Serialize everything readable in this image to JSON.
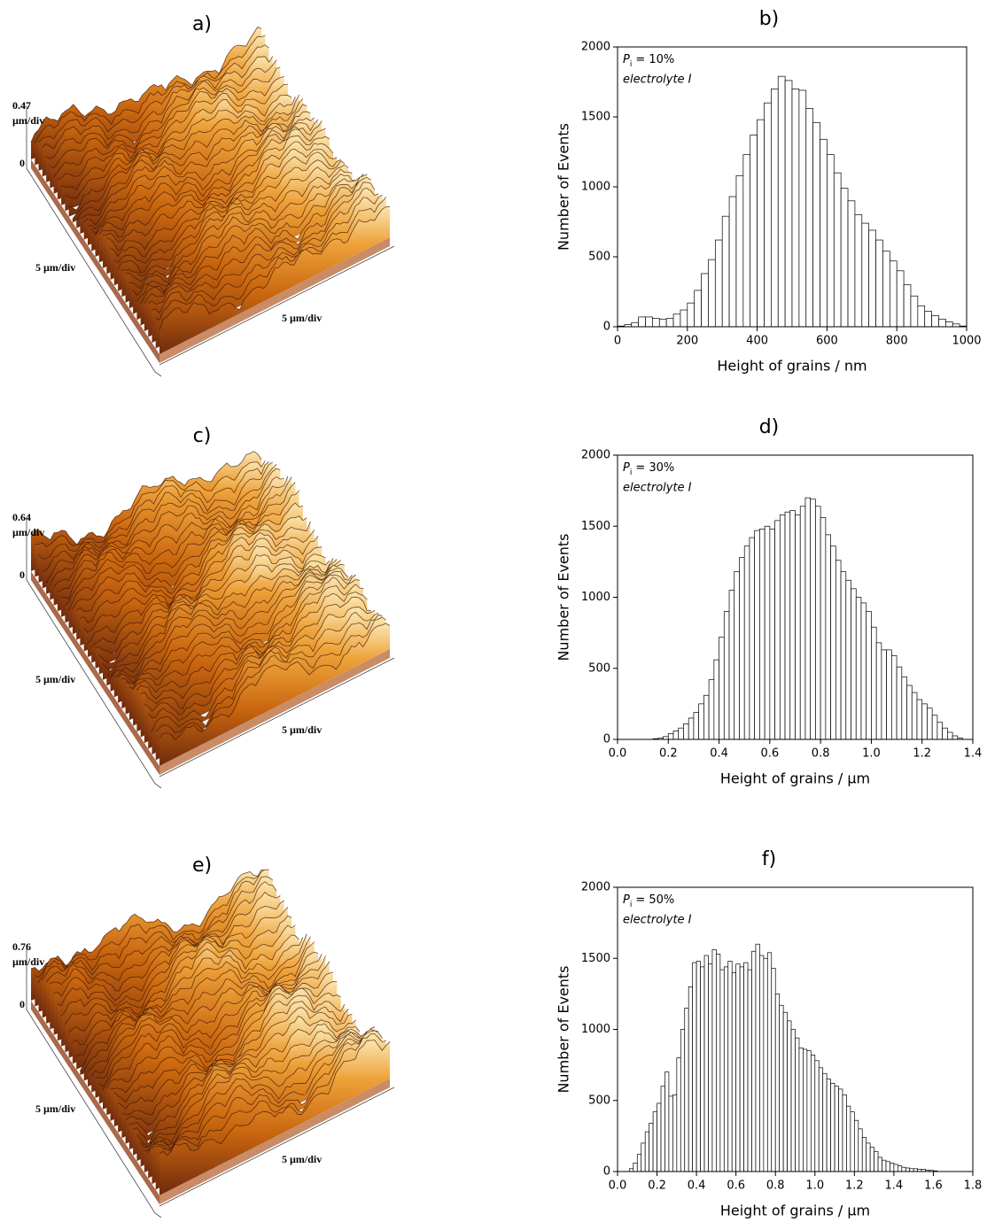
{
  "panels": [
    {
      "label": "a)",
      "z_max": "0.47",
      "z_unit": "µm/div",
      "z_zero": "0",
      "side_scale": "5 µm/div",
      "front_scale": "5 µm/div"
    },
    {
      "label": "c)",
      "z_max": "0.64",
      "z_unit": "µm/div",
      "z_zero": "0",
      "side_scale": "5 µm/div",
      "front_scale": "5 µm/div"
    },
    {
      "label": "e)",
      "z_max": "0.76",
      "z_unit": "µm/div",
      "z_zero": "0",
      "side_scale": "5 µm/div",
      "front_scale": "5 µm/div"
    }
  ],
  "chart_data": [
    {
      "type": "histogram",
      "title": "b)",
      "annotation_symbol": "P",
      "annotation_subscript": "i",
      "annotation_value": "= 10%",
      "annotation_note": "electrolyte I",
      "xlabel": "Height of grains / nm",
      "ylabel": "Number of Events",
      "color": "#ffffff",
      "bins": [
        0,
        20,
        40,
        60,
        80,
        100,
        120,
        140,
        160,
        180,
        200,
        220,
        240,
        260,
        280,
        300,
        320,
        340,
        360,
        380,
        400,
        420,
        440,
        460,
        480,
        500,
        520,
        540,
        560,
        580,
        600,
        620,
        640,
        660,
        680,
        700,
        720,
        740,
        760,
        780,
        800,
        820,
        840,
        860,
        880,
        900,
        920,
        940,
        960,
        980,
        1000
      ],
      "values": [
        5,
        15,
        30,
        70,
        70,
        60,
        55,
        60,
        90,
        120,
        170,
        260,
        380,
        480,
        620,
        790,
        930,
        1080,
        1230,
        1370,
        1480,
        1600,
        1700,
        1790,
        1760,
        1700,
        1690,
        1560,
        1460,
        1340,
        1230,
        1100,
        990,
        900,
        800,
        740,
        690,
        620,
        540,
        470,
        400,
        300,
        220,
        150,
        110,
        80,
        55,
        35,
        20,
        5
      ],
      "xlim": [
        0,
        1000
      ],
      "xticks": [
        0,
        200,
        400,
        600,
        800,
        1000
      ],
      "ylim": [
        0,
        2000
      ],
      "yticks": [
        0,
        500,
        1000,
        1500,
        2000
      ]
    },
    {
      "type": "histogram",
      "title": "d)",
      "annotation_symbol": "P",
      "annotation_subscript": "i",
      "annotation_value": "= 30%",
      "annotation_note": "electrolyte I",
      "xlabel": "Height of grains / µm",
      "ylabel": "Number of Events",
      "color": "#ffffff",
      "bins": [
        0.14,
        0.16,
        0.18,
        0.2,
        0.22,
        0.24,
        0.26,
        0.28,
        0.3,
        0.32,
        0.34,
        0.36,
        0.38,
        0.4,
        0.42,
        0.44,
        0.46,
        0.48,
        0.5,
        0.52,
        0.54,
        0.56,
        0.58,
        0.6,
        0.62,
        0.64,
        0.66,
        0.68,
        0.7,
        0.72,
        0.74,
        0.76,
        0.78,
        0.8,
        0.82,
        0.84,
        0.86,
        0.88,
        0.9,
        0.92,
        0.94,
        0.96,
        0.98,
        1,
        1.02,
        1.04,
        1.06,
        1.08,
        1.1,
        1.12,
        1.14,
        1.16,
        1.18,
        1.2,
        1.22,
        1.24,
        1.26,
        1.28,
        1.3,
        1.32,
        1.34,
        1.36
      ],
      "values": [
        5,
        10,
        20,
        40,
        60,
        80,
        110,
        150,
        190,
        250,
        310,
        420,
        560,
        720,
        900,
        1050,
        1180,
        1280,
        1360,
        1420,
        1470,
        1480,
        1500,
        1480,
        1540,
        1580,
        1600,
        1610,
        1580,
        1640,
        1700,
        1690,
        1640,
        1560,
        1440,
        1360,
        1260,
        1180,
        1120,
        1060,
        1000,
        960,
        900,
        790,
        680,
        630,
        630,
        590,
        510,
        440,
        380,
        330,
        280,
        250,
        220,
        170,
        120,
        80,
        50,
        25,
        10
      ],
      "xlim": [
        0,
        1.4
      ],
      "xticks": [
        {
          "value": 0,
          "label": "0.0"
        },
        0.2,
        0.4,
        0.6,
        0.8,
        {
          "value": 1,
          "label": "1.0"
        },
        1.2,
        1.4
      ],
      "ylim": [
        0,
        2000
      ],
      "yticks": [
        0,
        500,
        1000,
        1500,
        2000
      ]
    },
    {
      "type": "histogram",
      "title": "f)",
      "annotation_symbol": "P",
      "annotation_subscript": "i",
      "annotation_value": "= 50%",
      "annotation_note": "electrolyte I",
      "xlabel": "Height of grains / µm",
      "ylabel": "Number of Events",
      "color": "#ffffff",
      "bins": [
        0.06,
        0.08,
        0.1,
        0.12,
        0.14,
        0.16,
        0.18,
        0.2,
        0.22,
        0.24,
        0.26,
        0.28,
        0.3,
        0.32,
        0.34,
        0.36,
        0.38,
        0.4,
        0.42,
        0.44,
        0.46,
        0.48,
        0.5,
        0.52,
        0.54,
        0.56,
        0.58,
        0.6,
        0.62,
        0.64,
        0.66,
        0.68,
        0.7,
        0.72,
        0.74,
        0.76,
        0.78,
        0.8,
        0.82,
        0.84,
        0.86,
        0.88,
        0.9,
        0.92,
        0.94,
        0.96,
        0.98,
        1,
        1.02,
        1.04,
        1.06,
        1.08,
        1.1,
        1.12,
        1.14,
        1.16,
        1.18,
        1.2,
        1.22,
        1.24,
        1.26,
        1.28,
        1.3,
        1.32,
        1.34,
        1.36,
        1.38,
        1.4,
        1.42,
        1.44,
        1.46,
        1.48,
        1.5,
        1.52,
        1.54,
        1.56,
        1.58,
        1.6,
        1.62
      ],
      "values": [
        20,
        60,
        120,
        200,
        280,
        340,
        420,
        480,
        600,
        700,
        530,
        540,
        800,
        1000,
        1150,
        1300,
        1470,
        1480,
        1440,
        1520,
        1460,
        1560,
        1530,
        1420,
        1440,
        1480,
        1400,
        1460,
        1440,
        1470,
        1420,
        1550,
        1600,
        1520,
        1500,
        1540,
        1430,
        1250,
        1170,
        1120,
        1060,
        1000,
        940,
        870,
        860,
        850,
        820,
        780,
        730,
        690,
        650,
        620,
        600,
        580,
        540,
        460,
        420,
        360,
        300,
        240,
        200,
        170,
        140,
        100,
        80,
        70,
        60,
        50,
        40,
        30,
        25,
        20,
        20,
        15,
        15,
        10,
        8,
        5
      ],
      "xlim": [
        0,
        1.8
      ],
      "xticks": [
        {
          "value": 0,
          "label": "0.0"
        },
        0.2,
        0.4,
        0.6,
        0.8,
        {
          "value": 1,
          "label": "1.0"
        },
        1.2,
        1.4,
        1.6,
        1.8
      ],
      "ylim": [
        0,
        2000
      ],
      "yticks": [
        0,
        500,
        1000,
        1500,
        2000
      ]
    }
  ]
}
